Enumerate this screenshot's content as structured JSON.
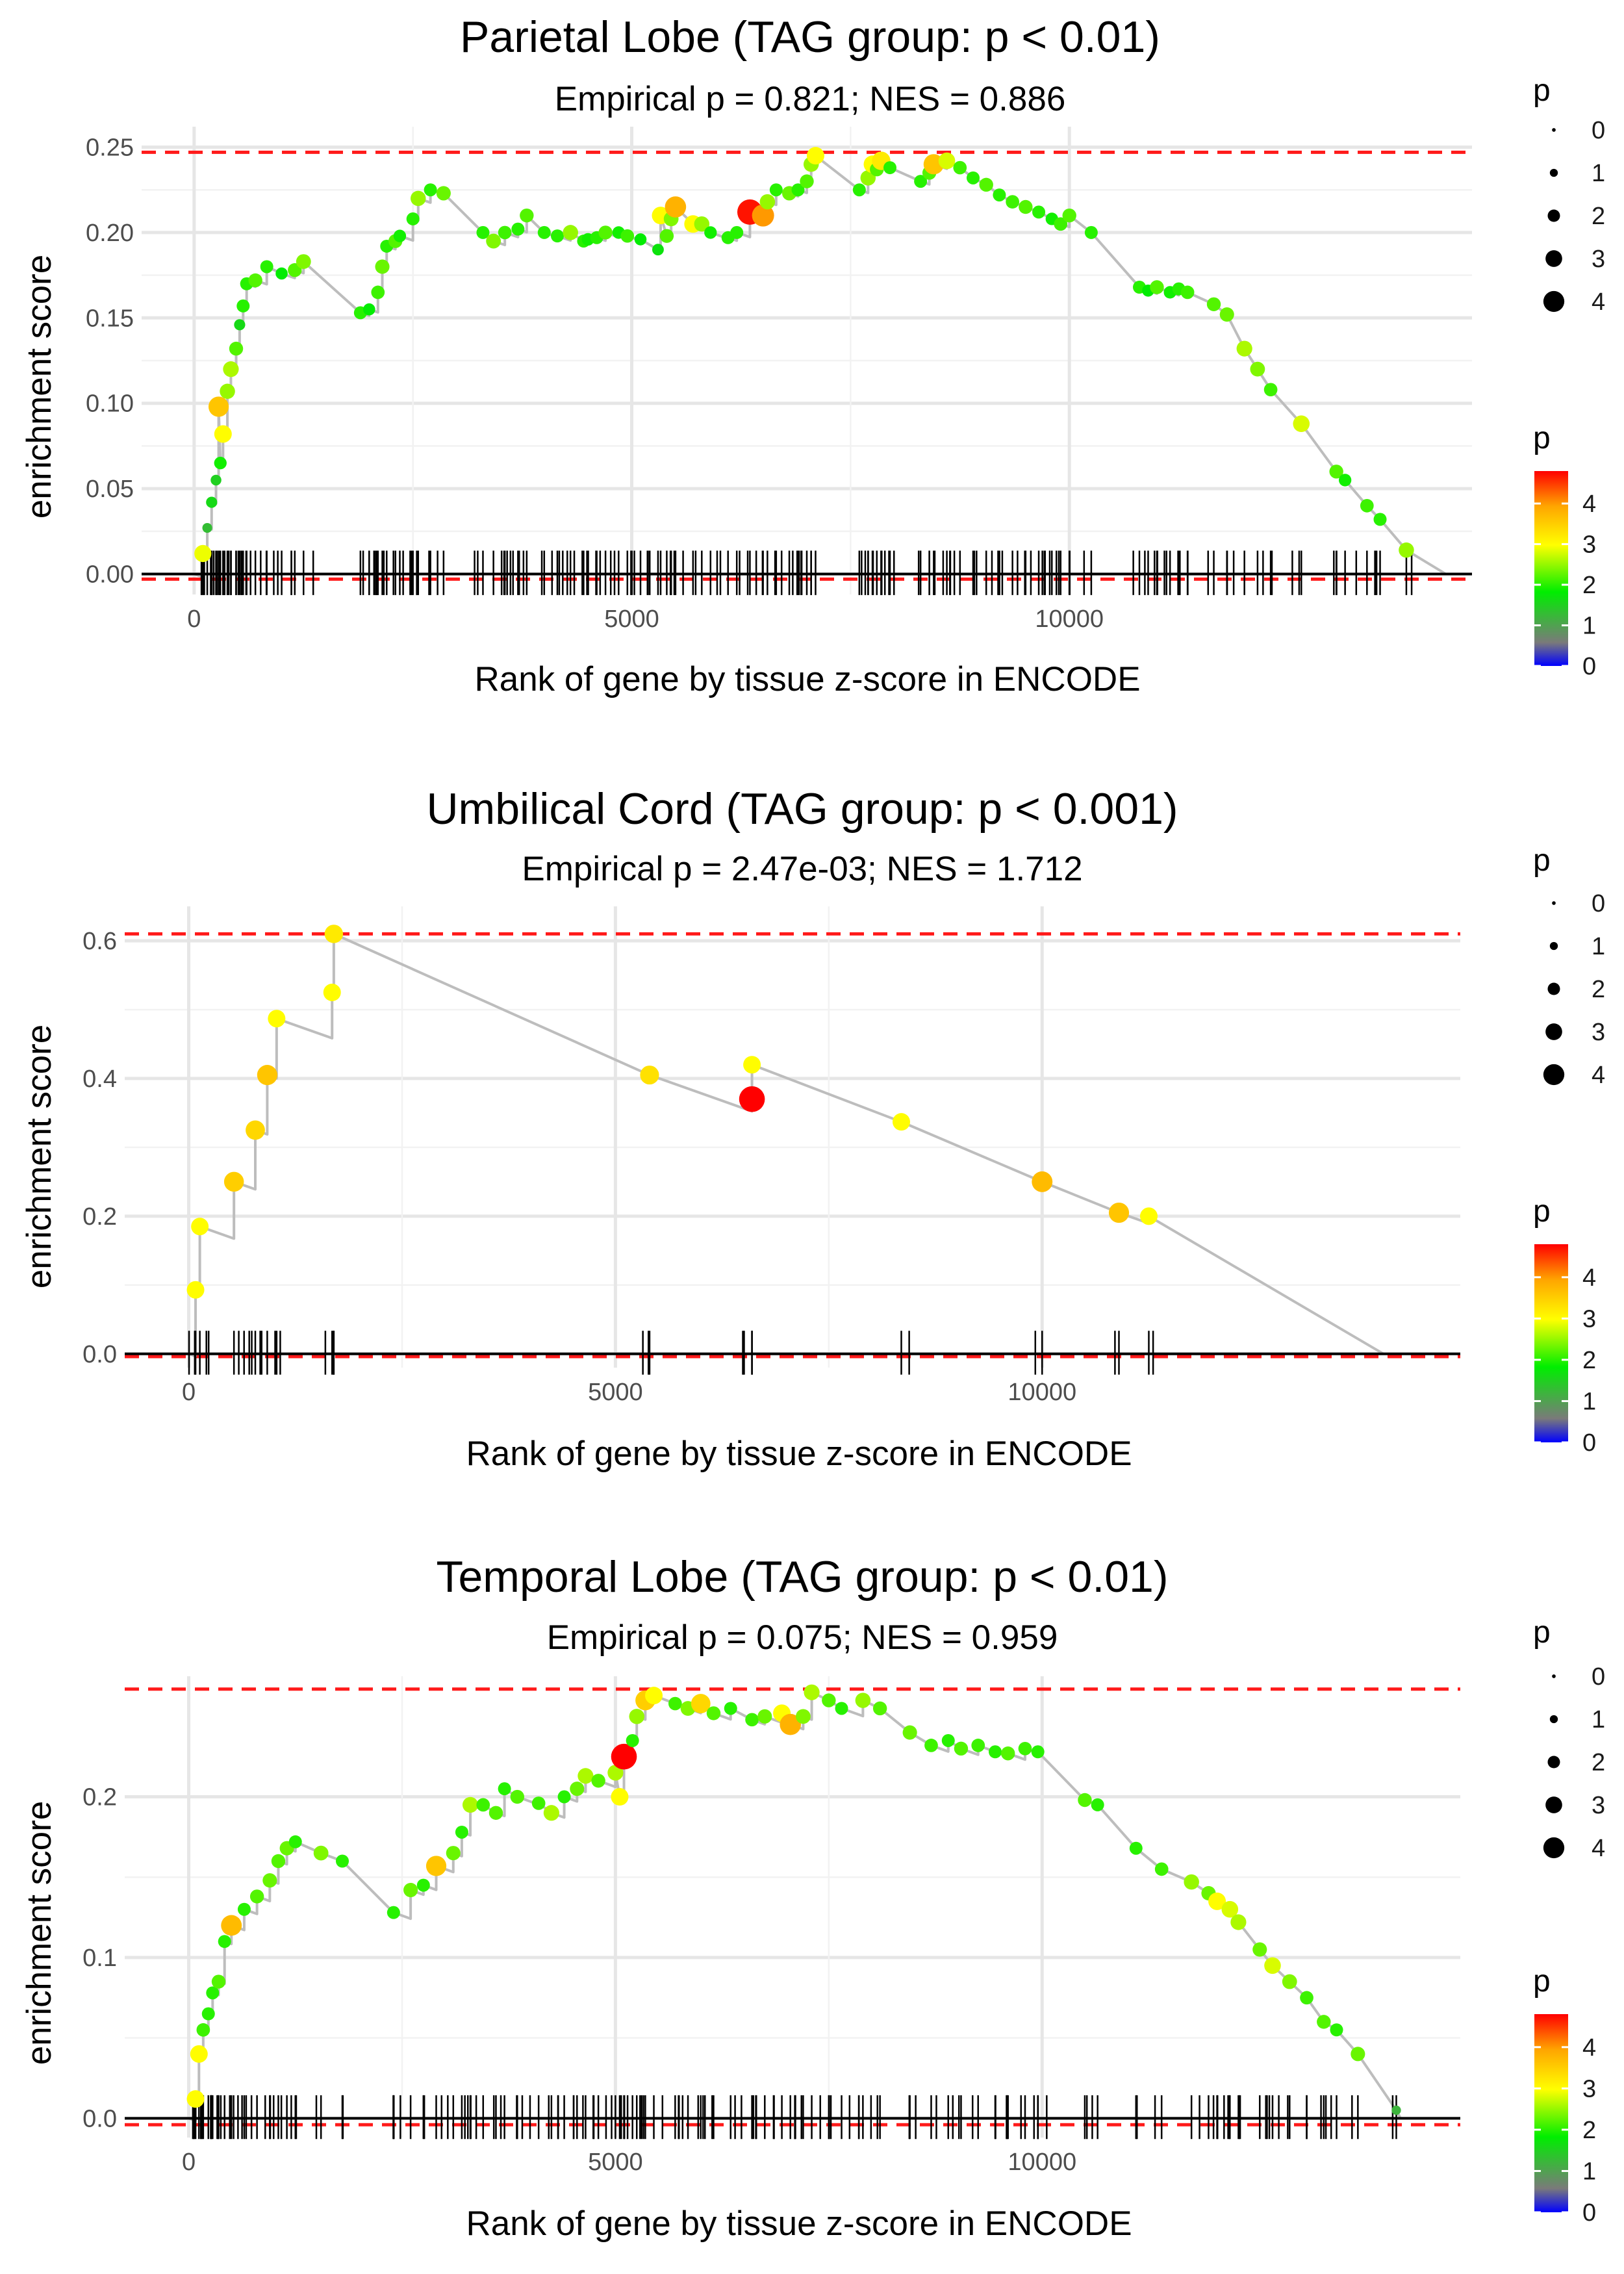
{
  "chart_data": [
    {
      "type": "line",
      "title": "Parietal Lobe (TAG group: p < 0.01)",
      "subtitle": "Empirical p = 0.821; NES = 0.886",
      "xlabel": "Rank of gene by tissue z-score in ENCODE",
      "ylabel": "enrichment score",
      "xlim": [
        -600,
        14600
      ],
      "ylim": [
        -0.012,
        0.262
      ],
      "x_ticks": [
        0,
        5000,
        10000
      ],
      "x_tick_labels": [
        "0",
        "5000",
        "10000"
      ],
      "y_ticks": [
        0,
        0.05,
        0.1,
        0.15,
        0.2,
        0.25
      ],
      "y_tick_labels": [
        "0.00",
        "0.05",
        "0.10",
        "0.15",
        "0.20",
        "0.25"
      ],
      "max_es": 0.247,
      "min_es": -0.003,
      "n_genes": 14300,
      "hits": [
        [
          100,
          0.012,
          2.9
        ],
        [
          150,
          0.027,
          1.3
        ],
        [
          200,
          0.042,
          1.6
        ],
        [
          250,
          0.055,
          1.5
        ],
        [
          280,
          0.098,
          3.6
        ],
        [
          300,
          0.065,
          1.9
        ],
        [
          330,
          0.082,
          3.0
        ],
        [
          380,
          0.107,
          2.5
        ],
        [
          420,
          0.12,
          2.6
        ],
        [
          480,
          0.132,
          2.2
        ],
        [
          520,
          0.146,
          1.6
        ],
        [
          560,
          0.157,
          2.0
        ],
        [
          600,
          0.17,
          2.0
        ],
        [
          700,
          0.172,
          2.2
        ],
        [
          830,
          0.18,
          2.0
        ],
        [
          1000,
          0.176,
          1.8
        ],
        [
          1150,
          0.178,
          2.2
        ],
        [
          1250,
          0.183,
          2.4
        ],
        [
          1900,
          0.153,
          2.0
        ],
        [
          2000,
          0.155,
          1.8
        ],
        [
          2100,
          0.165,
          2.1
        ],
        [
          2150,
          0.18,
          2.3
        ],
        [
          2200,
          0.192,
          2.0
        ],
        [
          2300,
          0.195,
          2.2
        ],
        [
          2350,
          0.198,
          1.9
        ],
        [
          2500,
          0.208,
          2.0
        ],
        [
          2560,
          0.22,
          2.5
        ],
        [
          2700,
          0.225,
          2.0
        ],
        [
          2850,
          0.223,
          2.3
        ],
        [
          3300,
          0.2,
          2.0
        ],
        [
          3420,
          0.195,
          2.4
        ],
        [
          3550,
          0.2,
          2.1
        ],
        [
          3700,
          0.202,
          2.0
        ],
        [
          3800,
          0.21,
          2.2
        ],
        [
          4000,
          0.2,
          2.0
        ],
        [
          4150,
          0.198,
          2.0
        ],
        [
          4300,
          0.2,
          2.5
        ],
        [
          4450,
          0.195,
          2.0
        ],
        [
          4500,
          0.196,
          1.9
        ],
        [
          4600,
          0.197,
          2.0
        ],
        [
          4700,
          0.2,
          2.2
        ],
        [
          4850,
          0.2,
          1.9
        ],
        [
          4950,
          0.198,
          2.1
        ],
        [
          5100,
          0.196,
          1.8
        ],
        [
          5300,
          0.19,
          1.7
        ],
        [
          5330,
          0.21,
          3.0
        ],
        [
          5400,
          0.198,
          2.2
        ],
        [
          5450,
          0.208,
          2.4
        ],
        [
          5500,
          0.215,
          3.8
        ],
        [
          5700,
          0.205,
          3.0
        ],
        [
          5800,
          0.205,
          2.5
        ],
        [
          5900,
          0.2,
          1.9
        ],
        [
          6100,
          0.197,
          2.0
        ],
        [
          6200,
          0.2,
          2.0
        ],
        [
          6350,
          0.212,
          4.7
        ],
        [
          6500,
          0.21,
          4.0
        ],
        [
          6550,
          0.218,
          2.5
        ],
        [
          6650,
          0.225,
          2.0
        ],
        [
          6800,
          0.223,
          2.3
        ],
        [
          6900,
          0.225,
          2.0
        ],
        [
          7000,
          0.23,
          2.2
        ],
        [
          7050,
          0.24,
          2.5
        ],
        [
          7100,
          0.245,
          3.0
        ],
        [
          7600,
          0.225,
          2.0
        ],
        [
          7700,
          0.232,
          2.5
        ],
        [
          7750,
          0.24,
          3.0
        ],
        [
          7800,
          0.237,
          2.2
        ],
        [
          7850,
          0.242,
          3.2
        ],
        [
          7950,
          0.238,
          2.0
        ],
        [
          8300,
          0.23,
          2.0
        ],
        [
          8400,
          0.235,
          2.2
        ],
        [
          8450,
          0.24,
          3.6
        ],
        [
          8600,
          0.242,
          2.8
        ],
        [
          8750,
          0.238,
          2.1
        ],
        [
          8900,
          0.232,
          2.0
        ],
        [
          9050,
          0.228,
          2.2
        ],
        [
          9200,
          0.222,
          2.0
        ],
        [
          9350,
          0.218,
          2.1
        ],
        [
          9500,
          0.215,
          2.2
        ],
        [
          9650,
          0.212,
          2.0
        ],
        [
          9800,
          0.208,
          1.9
        ],
        [
          9900,
          0.205,
          2.1
        ],
        [
          10000,
          0.21,
          2.2
        ],
        [
          10250,
          0.2,
          2.0
        ],
        [
          10800,
          0.168,
          2.0
        ],
        [
          10900,
          0.166,
          1.8
        ],
        [
          11000,
          0.168,
          2.2
        ],
        [
          11150,
          0.165,
          1.9
        ],
        [
          11250,
          0.167,
          2.0
        ],
        [
          11350,
          0.165,
          2.1
        ],
        [
          11650,
          0.158,
          2.2
        ],
        [
          11800,
          0.152,
          2.3
        ],
        [
          12000,
          0.132,
          2.6
        ],
        [
          12150,
          0.12,
          2.4
        ],
        [
          12300,
          0.108,
          2.1
        ],
        [
          12650,
          0.088,
          2.8
        ],
        [
          13050,
          0.06,
          2.2
        ],
        [
          13150,
          0.055,
          1.9
        ],
        [
          13400,
          0.04,
          2.1
        ],
        [
          13550,
          0.032,
          2.0
        ],
        [
          13850,
          0.014,
          2.5
        ]
      ]
    },
    {
      "type": "line",
      "title": "Umbilical Cord (TAG group: p < 0.001)",
      "subtitle": "Empirical p = 2.47e-03; NES = 1.712",
      "xlabel": "Rank of gene by tissue z-score in ENCODE",
      "ylabel": "enrichment score",
      "xlim": [
        -750,
        14900
      ],
      "ylim": [
        -0.02,
        0.65
      ],
      "x_ticks": [
        0,
        5000,
        10000
      ],
      "x_tick_labels": [
        "0",
        "5000",
        "10000"
      ],
      "y_ticks": [
        0,
        0.2,
        0.4,
        0.6
      ],
      "y_tick_labels": [
        "0.0",
        "0.2",
        "0.4",
        "0.6"
      ],
      "max_es": 0.61,
      "min_es": -0.004,
      "n_genes": 14000,
      "hits": [
        [
          80,
          0.093,
          3.0
        ],
        [
          130,
          0.185,
          3.0
        ],
        [
          530,
          0.25,
          3.5
        ],
        [
          780,
          0.325,
          3.4
        ],
        [
          920,
          0.405,
          3.6
        ],
        [
          1030,
          0.487,
          3.0
        ],
        [
          1680,
          0.525,
          3.0
        ],
        [
          1700,
          0.61,
          3.2
        ],
        [
          5400,
          0.405,
          3.3
        ],
        [
          6600,
          0.37,
          4.8
        ],
        [
          6600,
          0.42,
          3.0
        ],
        [
          8350,
          0.337,
          3.0
        ],
        [
          10000,
          0.25,
          3.7
        ],
        [
          10900,
          0.205,
          3.6
        ],
        [
          11250,
          0.2,
          3.0
        ]
      ]
    },
    {
      "type": "line",
      "title": "Temporal Lobe (TAG group: p < 0.01)",
      "subtitle": "Empirical p = 0.075; NES = 0.959",
      "xlabel": "Rank of gene by tissue z-score in ENCODE",
      "ylabel": "enrichment score",
      "xlim": [
        -750,
        14900
      ],
      "ylim": [
        -0.012,
        0.275
      ],
      "x_ticks": [
        0,
        5000,
        10000
      ],
      "x_tick_labels": [
        "0",
        "5000",
        "10000"
      ],
      "y_ticks": [
        0,
        0.1,
        0.2
      ],
      "y_tick_labels": [
        "0.0",
        "0.1",
        "0.2"
      ],
      "max_es": 0.267,
      "min_es": -0.004,
      "n_genes": 14200,
      "hits": [
        [
          80,
          0.012,
          3.0
        ],
        [
          120,
          0.04,
          3.0
        ],
        [
          170,
          0.055,
          2.1
        ],
        [
          230,
          0.065,
          2.0
        ],
        [
          280,
          0.078,
          2.0
        ],
        [
          350,
          0.085,
          2.2
        ],
        [
          420,
          0.11,
          2.0
        ],
        [
          500,
          0.12,
          3.7
        ],
        [
          650,
          0.13,
          2.0
        ],
        [
          800,
          0.138,
          2.2
        ],
        [
          950,
          0.148,
          2.3
        ],
        [
          1050,
          0.16,
          2.2
        ],
        [
          1150,
          0.168,
          2.3
        ],
        [
          1250,
          0.172,
          2.0
        ],
        [
          1550,
          0.165,
          2.4
        ],
        [
          1800,
          0.16,
          2.0
        ],
        [
          2400,
          0.128,
          2.0
        ],
        [
          2600,
          0.142,
          2.3
        ],
        [
          2750,
          0.145,
          2.0
        ],
        [
          2900,
          0.157,
          3.6
        ],
        [
          3100,
          0.165,
          2.3
        ],
        [
          3200,
          0.178,
          2.0
        ],
        [
          3300,
          0.195,
          2.6
        ],
        [
          3450,
          0.195,
          2.1
        ],
        [
          3600,
          0.19,
          2.2
        ],
        [
          3700,
          0.205,
          2.0
        ],
        [
          3850,
          0.2,
          2.2
        ],
        [
          4100,
          0.196,
          2.1
        ],
        [
          4250,
          0.19,
          2.6
        ],
        [
          4400,
          0.2,
          2.0
        ],
        [
          4550,
          0.205,
          2.3
        ],
        [
          4650,
          0.213,
          2.6
        ],
        [
          4800,
          0.21,
          2.2
        ],
        [
          5000,
          0.215,
          2.6
        ],
        [
          5050,
          0.2,
          3.0
        ],
        [
          5100,
          0.225,
          4.8
        ],
        [
          5200,
          0.235,
          2.0
        ],
        [
          5250,
          0.25,
          2.5
        ],
        [
          5350,
          0.26,
          3.5
        ],
        [
          5450,
          0.263,
          3.0
        ],
        [
          5700,
          0.258,
          2.1
        ],
        [
          5850,
          0.255,
          2.4
        ],
        [
          6000,
          0.258,
          3.4
        ],
        [
          6150,
          0.252,
          2.2
        ],
        [
          6350,
          0.255,
          2.0
        ],
        [
          6600,
          0.248,
          2.1
        ],
        [
          6750,
          0.25,
          2.3
        ],
        [
          6950,
          0.252,
          3.0
        ],
        [
          7050,
          0.245,
          3.8
        ],
        [
          7200,
          0.25,
          2.4
        ],
        [
          7300,
          0.265,
          2.6
        ],
        [
          7500,
          0.26,
          2.2
        ],
        [
          7650,
          0.255,
          2.0
        ],
        [
          7900,
          0.26,
          2.5
        ],
        [
          8100,
          0.255,
          2.2
        ],
        [
          8450,
          0.24,
          2.3
        ],
        [
          8700,
          0.232,
          2.1
        ],
        [
          8900,
          0.235,
          2.0
        ],
        [
          9050,
          0.23,
          2.2
        ],
        [
          9250,
          0.232,
          2.1
        ],
        [
          9450,
          0.228,
          2.0
        ],
        [
          9600,
          0.227,
          2.2
        ],
        [
          9800,
          0.23,
          2.1
        ],
        [
          9950,
          0.228,
          2.0
        ],
        [
          10500,
          0.198,
          2.2
        ],
        [
          10650,
          0.195,
          2.0
        ],
        [
          11100,
          0.168,
          2.0
        ],
        [
          11400,
          0.155,
          2.1
        ],
        [
          11750,
          0.147,
          2.5
        ],
        [
          11950,
          0.14,
          2.3
        ],
        [
          12050,
          0.135,
          3.0
        ],
        [
          12200,
          0.13,
          2.8
        ],
        [
          12300,
          0.122,
          2.6
        ],
        [
          12550,
          0.105,
          2.3
        ],
        [
          12700,
          0.095,
          2.8
        ],
        [
          12900,
          0.085,
          2.4
        ],
        [
          13100,
          0.075,
          2.1
        ],
        [
          13300,
          0.06,
          2.2
        ],
        [
          13450,
          0.055,
          2.0
        ],
        [
          13700,
          0.04,
          2.3
        ],
        [
          14150,
          0.005,
          1.2
        ]
      ]
    }
  ],
  "legends": [
    {
      "size_title": "p",
      "size_labels": [
        "0",
        "1",
        "2",
        "3",
        "4"
      ],
      "color_title": "p",
      "color_labels": [
        "4",
        "3",
        "2",
        "1",
        "0"
      ],
      "color_max": 4.8
    },
    {
      "size_title": "p",
      "size_labels": [
        "0",
        "1",
        "2",
        "3",
        "4"
      ],
      "color_title": "p",
      "color_labels": [
        "4",
        "3",
        "2",
        "1",
        "0"
      ],
      "color_max": 4.8
    },
    {
      "size_title": "p",
      "size_labels": [
        "0",
        "1",
        "2",
        "3",
        "4"
      ],
      "color_title": "p",
      "color_labels": [
        "4",
        "3",
        "2",
        "1",
        "0"
      ],
      "color_max": 4.8
    }
  ],
  "colors": {
    "max_line": "#ff1a1a",
    "path": "#bdbdbd",
    "gradient": [
      "#0000ff",
      "#7a7a7a",
      "#00ee00",
      "#ffff00",
      "#ffa500",
      "#ff0000"
    ]
  }
}
